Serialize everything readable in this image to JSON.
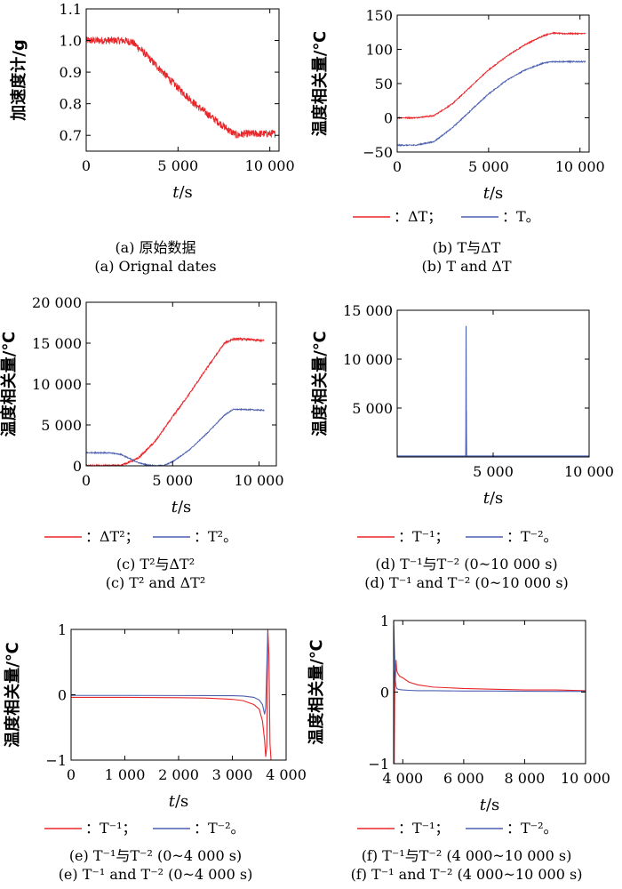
{
  "figure": {
    "legend_ex": {
      "dT_label": "：ΔT；",
      "T_label": "：T。"
    },
    "legend_inv": {
      "a_label": "：T⁻¹；",
      "b_label": "：T⁻²。"
    },
    "legend_sq": {
      "a_label": "：ΔT²；",
      "b_label": "：T²。"
    }
  },
  "colors": {
    "red": "#e8262a",
    "blue": "#4b5fb0",
    "axis": "#000000"
  },
  "chart_data": [
    {
      "id": "a",
      "type": "line",
      "caption_cn": "(a) 原始数据",
      "caption_en": "(a) Orignal dates",
      "xlabel": "t/s",
      "ylabel": "加速度计/g",
      "xlim": [
        0,
        10500
      ],
      "ylim": [
        0.65,
        1.1
      ],
      "xticks": [
        0,
        5000,
        10000
      ],
      "xtick_labels": [
        "0",
        "5 000",
        "10 000"
      ],
      "yticks": [
        0.7,
        0.8,
        0.9,
        1.0,
        1.1
      ],
      "ytick_labels": [
        "0.7",
        "0.8",
        "0.9",
        "1.0",
        "1.1"
      ],
      "series": [
        {
          "color": "red",
          "noise": 0.012,
          "x": [
            0,
            1000,
            2000,
            2500,
            3000,
            4000,
            5000,
            6000,
            7000,
            7800,
            8200,
            8600,
            9000,
            10000,
            10300
          ],
          "y": [
            1.0,
            1.0,
            1.0,
            0.995,
            0.97,
            0.91,
            0.85,
            0.795,
            0.75,
            0.715,
            0.7,
            0.705,
            0.705,
            0.705,
            0.705
          ]
        }
      ]
    },
    {
      "id": "b",
      "type": "line",
      "caption_cn": "(b) T与ΔT",
      "caption_en": "(b) T and ΔT",
      "xlabel": "t/s",
      "ylabel": "温度相关量/℃",
      "xlim": [
        0,
        10500
      ],
      "ylim": [
        -50,
        150
      ],
      "xticks": [
        0,
        5000,
        10000
      ],
      "xtick_labels": [
        "0",
        "5 000",
        "10 000"
      ],
      "yticks": [
        -50,
        0,
        50,
        100,
        150
      ],
      "ytick_labels": [
        "−50",
        "0",
        "50",
        "100",
        "150"
      ],
      "series": [
        {
          "color": "red",
          "noise": 0.8,
          "x": [
            0,
            1000,
            2000,
            3000,
            4000,
            5000,
            6000,
            7000,
            8000,
            8500,
            9000,
            10300
          ],
          "y": [
            0,
            0,
            3,
            20,
            45,
            70,
            90,
            107,
            120,
            124,
            123,
            123
          ]
        },
        {
          "color": "blue",
          "noise": 0.8,
          "x": [
            0,
            1000,
            2000,
            3000,
            4000,
            5000,
            6000,
            7000,
            8000,
            8500,
            9000,
            10300
          ],
          "y": [
            -40,
            -40,
            -35,
            -15,
            10,
            35,
            55,
            70,
            80,
            82,
            82,
            82
          ]
        }
      ]
    },
    {
      "id": "c",
      "type": "line",
      "caption_cn": "(c) T²与ΔT²",
      "caption_en": "(c) T² and ΔT²",
      "xlabel": "t/s",
      "ylabel": "温度相关量/℃",
      "xlim": [
        0,
        11000
      ],
      "ylim": [
        0,
        20000
      ],
      "xticks": [
        0,
        5000,
        10000
      ],
      "xtick_labels": [
        "0",
        "5 000",
        "10 000"
      ],
      "yticks": [
        0,
        5000,
        10000,
        15000,
        20000
      ],
      "ytick_labels": [
        "0",
        "5 000",
        "10 000",
        "15 000",
        "20 000"
      ],
      "series": [
        {
          "color": "red",
          "noise": 120,
          "x": [
            0,
            1000,
            2000,
            3000,
            4000,
            5000,
            6000,
            7000,
            8000,
            8500,
            9000,
            10300
          ],
          "y": [
            0,
            0,
            50,
            900,
            3000,
            6000,
            8900,
            12000,
            15000,
            15500,
            15500,
            15300
          ]
        },
        {
          "color": "blue",
          "noise": 60,
          "x": [
            0,
            1000,
            1500,
            2000,
            2500,
            3000,
            3500,
            4000,
            4500,
            5000,
            6000,
            7000,
            8000,
            8500,
            9000,
            10300
          ],
          "y": [
            1600,
            1600,
            1550,
            1400,
            900,
            400,
            100,
            0,
            50,
            500,
            2000,
            4000,
            6200,
            6900,
            6900,
            6800
          ]
        }
      ]
    },
    {
      "id": "d",
      "type": "line",
      "caption_cn": "(d) T⁻¹与T⁻² (0~10 000 s)",
      "caption_en": "(d) T⁻¹ and T⁻² (0~10 000 s)",
      "xlabel": "t/s",
      "ylabel": "温度相关量/℃",
      "xlim": [
        0,
        10000
      ],
      "ylim": [
        0,
        15000
      ],
      "xticks": [
        5000,
        10000
      ],
      "xtick_labels": [
        "5 000",
        "10 000"
      ],
      "yticks": [
        5000,
        10000,
        15000
      ],
      "ytick_labels": [
        "5 000",
        "10 000",
        "15 000"
      ],
      "series": [
        {
          "color": "red",
          "noise": 0,
          "x": [
            0,
            3580,
            3600,
            3620,
            10000
          ],
          "y": [
            80,
            80,
            4700,
            80,
            80
          ]
        },
        {
          "color": "blue",
          "noise": 0,
          "x": [
            0,
            3575,
            3590,
            3605,
            10000
          ],
          "y": [
            100,
            100,
            13400,
            100,
            100
          ]
        }
      ]
    },
    {
      "id": "e",
      "type": "line",
      "caption_cn": "(e) T⁻¹与T⁻² (0~4 000 s)",
      "caption_en": "(e) T⁻¹ and T⁻² (0~4 000 s)",
      "xlabel": "t/s",
      "ylabel": "温度相关量/℃",
      "xlim": [
        0,
        4000
      ],
      "ylim": [
        -1,
        1
      ],
      "xticks": [
        0,
        1000,
        2000,
        3000,
        4000
      ],
      "xtick_labels": [
        "0",
        "1 000",
        "2 000",
        "3 000",
        "4 000"
      ],
      "yticks": [
        -1,
        0,
        1
      ],
      "ytick_labels": [
        "−1",
        "0",
        "1"
      ],
      "series": [
        {
          "color": "red",
          "noise": 0,
          "x": [
            0,
            1000,
            2000,
            2500,
            3000,
            3200,
            3400,
            3500,
            3560,
            3600,
            3620,
            3640,
            3660,
            3680,
            3700,
            3720
          ],
          "y": [
            -0.04,
            -0.04,
            -0.045,
            -0.05,
            -0.07,
            -0.09,
            -0.15,
            -0.22,
            -0.4,
            -0.7,
            -0.95,
            -0.8,
            1.0,
            0.6,
            -0.75,
            -1.0
          ]
        },
        {
          "color": "blue",
          "noise": 0,
          "x": [
            0,
            1000,
            2000,
            2500,
            3000,
            3200,
            3400,
            3500,
            3560,
            3600,
            3620,
            3640,
            3660
          ],
          "y": [
            -0.01,
            -0.01,
            -0.012,
            -0.013,
            -0.015,
            -0.02,
            -0.04,
            -0.08,
            -0.15,
            -0.3,
            -0.2,
            0.4,
            1.0
          ]
        }
      ]
    },
    {
      "id": "f",
      "type": "line",
      "caption_cn": "(f) T⁻¹与T⁻² (4 000~10 000 s)",
      "caption_en": "(f) T⁻¹ and T⁻² (4 000~10 000 s)",
      "xlabel": "t/s",
      "ylabel": "温度相关量/℃",
      "xlim": [
        3700,
        10000
      ],
      "ylim": [
        -1,
        1
      ],
      "xticks": [
        4000,
        6000,
        8000,
        10000
      ],
      "xtick_labels": [
        "4 000",
        "6 000",
        "8 000",
        "10 000"
      ],
      "yticks": [
        -1,
        0,
        1
      ],
      "ytick_labels": [
        "−1",
        "0",
        "1"
      ],
      "series": [
        {
          "color": "red",
          "noise": 0,
          "x": [
            3700,
            3720,
            3740,
            3760,
            3780,
            3800,
            3850,
            3900,
            4000,
            4200,
            4500,
            5000,
            6000,
            7000,
            8000,
            9000,
            10000
          ],
          "y": [
            1.0,
            -1.0,
            0.3,
            0.2,
            0.45,
            0.3,
            0.25,
            0.22,
            0.2,
            0.14,
            0.1,
            0.07,
            0.05,
            0.04,
            0.03,
            0.03,
            0.02
          ]
        },
        {
          "color": "blue",
          "noise": 0,
          "x": [
            3700,
            3720,
            3740,
            3760,
            3780,
            3800,
            3850,
            3900,
            4000,
            4200,
            4500,
            5000,
            6000,
            7000,
            8000,
            9000,
            10000
          ],
          "y": [
            1.0,
            0.7,
            0.4,
            0.15,
            0.08,
            0.05,
            0.04,
            0.035,
            0.03,
            0.025,
            0.02,
            0.02,
            0.015,
            0.015,
            0.012,
            0.01,
            0.01
          ]
        }
      ]
    }
  ]
}
